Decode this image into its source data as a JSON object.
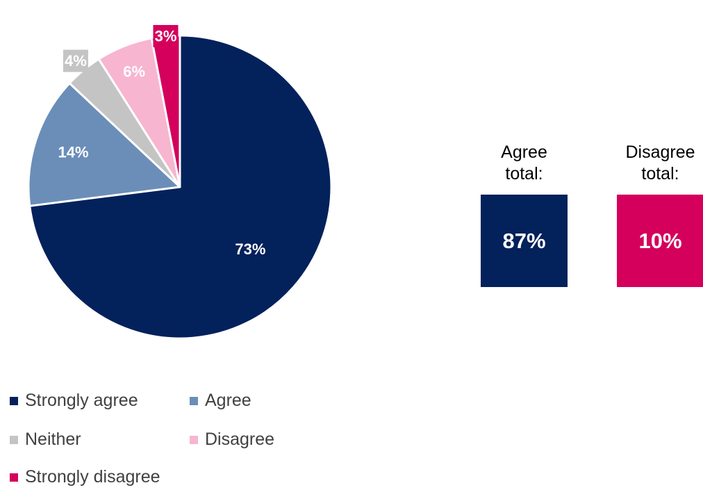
{
  "chart_data": {
    "type": "pie",
    "slices": [
      {
        "label": "Strongly agree",
        "value": 73,
        "display": "73%",
        "color": "#03215B"
      },
      {
        "label": "Agree",
        "value": 14,
        "display": "14%",
        "color": "#6B8EB8"
      },
      {
        "label": "Neither",
        "value": 4,
        "display": "4%",
        "color": "#C4C4C4"
      },
      {
        "label": "Disagree",
        "value": 6,
        "display": "6%",
        "color": "#F7B5D0"
      },
      {
        "label": "Strongly disagree",
        "value": 3,
        "display": "3%",
        "color": "#D4005C"
      }
    ],
    "legend_position": "bottom-left"
  },
  "totals": {
    "agree": {
      "label_line1": "Agree",
      "label_line2": "total:",
      "value": "87%",
      "color": "#03215B"
    },
    "disagree": {
      "label_line1": "Disagree",
      "label_line2": "total:",
      "value": "10%",
      "color": "#D4005C"
    }
  }
}
